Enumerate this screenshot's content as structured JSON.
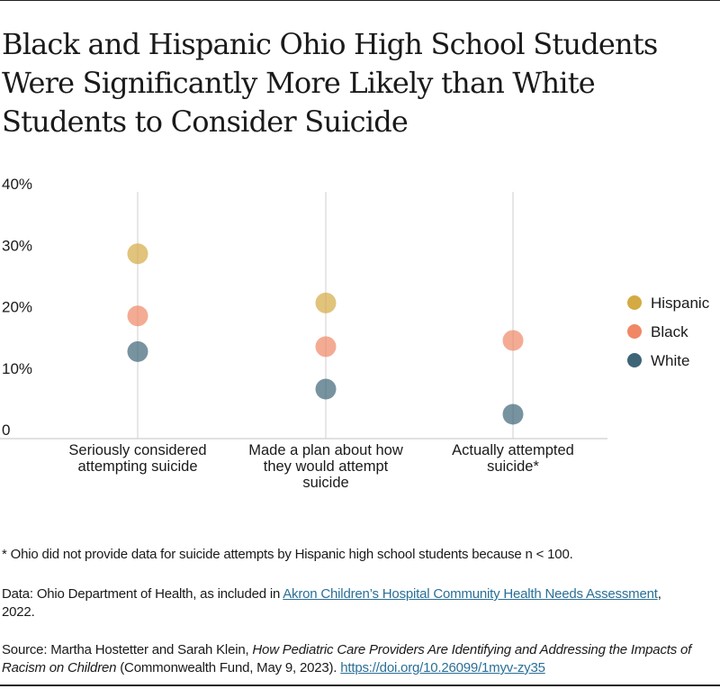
{
  "title": "Black and Hispanic Ohio High School Students Were Significantly More Likely than White Students to Consider Suicide",
  "chart_data": {
    "type": "scatter",
    "title": "Black and Hispanic Ohio High School Students Were Significantly More Likely than White Students to Consider Suicide",
    "categories": [
      [
        "Seriously considered",
        "attempting suicide"
      ],
      [
        "Made a plan about how",
        "they would attempt",
        "suicide"
      ],
      [
        "Actually attempted",
        "suicide*"
      ]
    ],
    "yticks": [
      "0",
      "10%",
      "20%",
      "30%",
      "40%"
    ],
    "ylim": [
      0,
      40
    ],
    "grid": "vertical lines at categories",
    "legend_position": "right",
    "series": [
      {
        "name": "Hispanic",
        "color": "#d4aa44",
        "values": [
          28.6,
          20.6,
          null
        ]
      },
      {
        "name": "Black",
        "color": "#f08866",
        "values": [
          18.5,
          13.5,
          14.5
        ]
      },
      {
        "name": "White",
        "color": "#3e6577",
        "values": [
          12.7,
          6.6,
          2.5
        ]
      }
    ]
  },
  "footnote": "* Ohio did not provide data for suicide attempts by Hispanic high school students because n < 100.",
  "data_note": {
    "prefix": "Data: Ohio Department of Health, as included in ",
    "link": "Akron Children’s Hospital Community Health Needs Assessment",
    "suffix": ", 2022."
  },
  "source": {
    "prefix": "Source: Martha Hostetter and Sarah Klein, ",
    "italic": "How Pediatric Care Providers Are Identifying and Addressing the Impacts of Racism on Children",
    "middle": " (Commonwealth Fund, May 9, 2023). ",
    "link": "https://doi.org/10.26099/1myv-zy35"
  }
}
